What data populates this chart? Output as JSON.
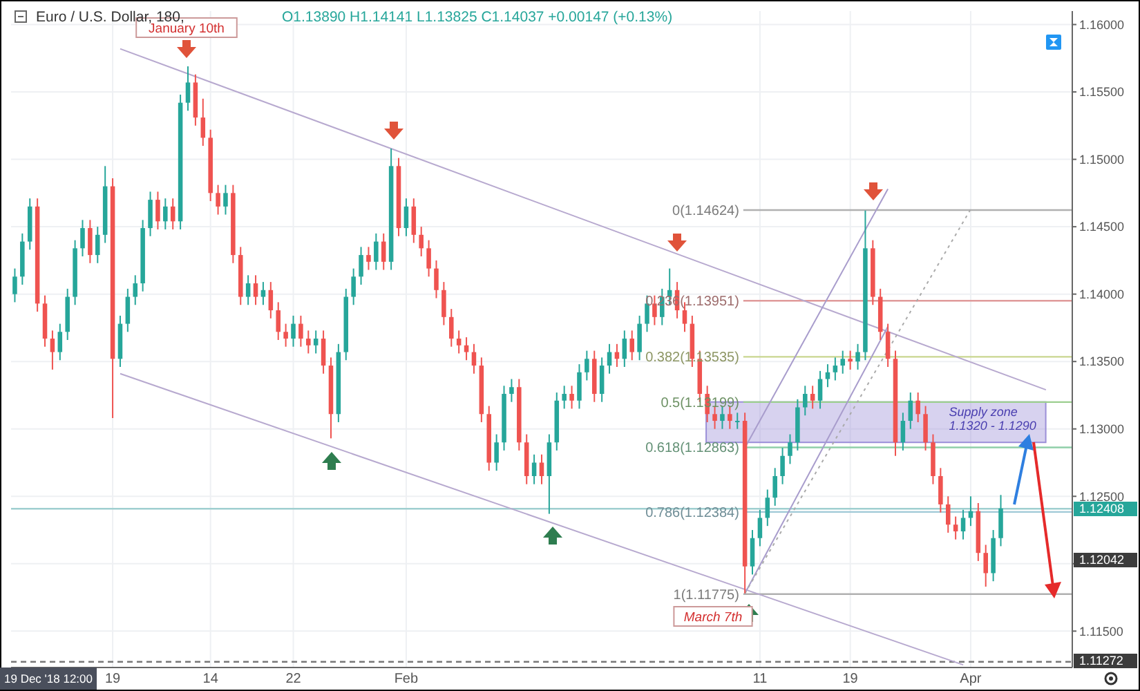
{
  "chart_data": {
    "type": "candlestick",
    "title": "Euro / U.S. Dollar, 180,",
    "subtitle": "O1.13890 H1.14141 L1.13825 C1.14037 +0.00147 (+0.13%)",
    "categories": [
      null,
      null,
      null,
      null,
      null,
      null,
      null,
      null,
      null,
      null,
      null,
      null,
      null,
      "19",
      null,
      null,
      null,
      null,
      null,
      null,
      null,
      null,
      null,
      null,
      null,
      null,
      "14",
      null,
      null,
      null,
      null,
      null,
      null,
      null,
      null,
      null,
      null,
      "22",
      null,
      null,
      null,
      null,
      null,
      null,
      null,
      null,
      null,
      null,
      null,
      null,
      null,
      null,
      "Feb",
      null,
      null,
      null,
      null,
      null,
      null,
      null,
      null,
      null,
      null,
      null,
      null,
      null,
      null,
      null,
      null,
      null,
      null,
      null,
      null,
      null,
      null,
      null,
      null,
      null,
      null,
      null,
      null,
      null,
      null,
      null,
      null,
      null,
      null,
      null,
      null,
      null,
      null,
      null,
      null,
      null,
      null,
      null,
      null,
      null,
      null,
      "11",
      null,
      null,
      null,
      null,
      null,
      null,
      null,
      null,
      null,
      null,
      null,
      "19",
      null,
      null,
      null,
      null,
      null,
      null,
      null,
      null,
      null,
      null,
      null,
      null,
      null,
      null,
      null,
      "Apr",
      null,
      null,
      null,
      null,
      null,
      null,
      null,
      null,
      null,
      null,
      null,
      null,
      null
    ],
    "ohlc": [
      [
        1.14,
        1.1419,
        1.1394,
        1.1413
      ],
      [
        1.1413,
        1.1445,
        1.1407,
        1.1439
      ],
      [
        1.1439,
        1.1471,
        1.1433,
        1.1465
      ],
      [
        1.1465,
        1.1471,
        1.1387,
        1.1393
      ],
      [
        1.1393,
        1.1399,
        1.1361,
        1.1367
      ],
      [
        1.1367,
        1.1373,
        1.1344,
        1.1357
      ],
      [
        1.1357,
        1.1378,
        1.1351,
        1.1372
      ],
      [
        1.1372,
        1.1404,
        1.1366,
        1.1398
      ],
      [
        1.1398,
        1.144,
        1.1392,
        1.1434
      ],
      [
        1.1434,
        1.1455,
        1.1428,
        1.1449
      ],
      [
        1.1449,
        1.1455,
        1.1423,
        1.1429
      ],
      [
        1.1429,
        1.145,
        1.1423,
        1.1444
      ],
      [
        1.1444,
        1.1495,
        1.1438,
        1.148
      ],
      [
        1.148,
        1.1486,
        1.1308,
        1.1352
      ],
      [
        1.1352,
        1.1384,
        1.1346,
        1.1378
      ],
      [
        1.1378,
        1.1404,
        1.1372,
        1.1398
      ],
      [
        1.1398,
        1.1414,
        1.1392,
        1.1408
      ],
      [
        1.1408,
        1.1455,
        1.1402,
        1.1449
      ],
      [
        1.1449,
        1.1476,
        1.1443,
        1.147
      ],
      [
        1.147,
        1.1476,
        1.1448,
        1.1454
      ],
      [
        1.1454,
        1.1471,
        1.1448,
        1.1465
      ],
      [
        1.1465,
        1.1471,
        1.1448,
        1.1454
      ],
      [
        1.1454,
        1.1548,
        1.1448,
        1.1542
      ],
      [
        1.1542,
        1.1569,
        1.1536,
        1.1557
      ],
      [
        1.1557,
        1.1563,
        1.1525,
        1.1531
      ],
      [
        1.1531,
        1.1545,
        1.151,
        1.1516
      ],
      [
        1.1516,
        1.1522,
        1.1469,
        1.1475
      ],
      [
        1.1475,
        1.1481,
        1.1459,
        1.1465
      ],
      [
        1.1465,
        1.1481,
        1.1459,
        1.1475
      ],
      [
        1.1475,
        1.1481,
        1.1423,
        1.1429
      ],
      [
        1.1429,
        1.1435,
        1.1392,
        1.1398
      ],
      [
        1.1398,
        1.1414,
        1.1392,
        1.1408
      ],
      [
        1.1408,
        1.1414,
        1.1392,
        1.1398
      ],
      [
        1.1398,
        1.1409,
        1.1392,
        1.1403
      ],
      [
        1.1403,
        1.1409,
        1.1382,
        1.1388
      ],
      [
        1.1388,
        1.1394,
        1.1366,
        1.1372
      ],
      [
        1.1372,
        1.1378,
        1.1361,
        1.1367
      ],
      [
        1.1367,
        1.1384,
        1.1361,
        1.1378
      ],
      [
        1.1378,
        1.1384,
        1.1361,
        1.1367
      ],
      [
        1.1367,
        1.1373,
        1.1356,
        1.1362
      ],
      [
        1.1362,
        1.1373,
        1.1356,
        1.1367
      ],
      [
        1.1367,
        1.1373,
        1.1341,
        1.1347
      ],
      [
        1.1347,
        1.1353,
        1.1293,
        1.1311
      ],
      [
        1.1311,
        1.1363,
        1.1305,
        1.1357
      ],
      [
        1.1357,
        1.1404,
        1.1351,
        1.1398
      ],
      [
        1.1398,
        1.1419,
        1.1392,
        1.1413
      ],
      [
        1.1413,
        1.1435,
        1.1407,
        1.1429
      ],
      [
        1.1429,
        1.1435,
        1.1418,
        1.1424
      ],
      [
        1.1424,
        1.1445,
        1.1418,
        1.1439
      ],
      [
        1.1439,
        1.1445,
        1.1418,
        1.1424
      ],
      [
        1.1424,
        1.1508,
        1.1418,
        1.1495
      ],
      [
        1.1495,
        1.1501,
        1.1443,
        1.1449
      ],
      [
        1.1449,
        1.1471,
        1.1443,
        1.1465
      ],
      [
        1.1465,
        1.1471,
        1.1438,
        1.1444
      ],
      [
        1.1444,
        1.145,
        1.1428,
        1.1434
      ],
      [
        1.1434,
        1.144,
        1.1413,
        1.1419
      ],
      [
        1.1419,
        1.1425,
        1.1397,
        1.1403
      ],
      [
        1.1403,
        1.1409,
        1.1377,
        1.1383
      ],
      [
        1.1383,
        1.1389,
        1.1361,
        1.1367
      ],
      [
        1.1367,
        1.1373,
        1.1356,
        1.1362
      ],
      [
        1.1362,
        1.1368,
        1.1351,
        1.1357
      ],
      [
        1.1357,
        1.1363,
        1.1341,
        1.1347
      ],
      [
        1.1347,
        1.1353,
        1.1305,
        1.1311
      ],
      [
        1.1311,
        1.1317,
        1.1269,
        1.1275
      ],
      [
        1.1275,
        1.1296,
        1.1269,
        1.129
      ],
      [
        1.129,
        1.1332,
        1.1284,
        1.1326
      ],
      [
        1.1326,
        1.1337,
        1.132,
        1.1331
      ],
      [
        1.1331,
        1.1337,
        1.1284,
        1.129
      ],
      [
        1.129,
        1.1296,
        1.1259,
        1.1265
      ],
      [
        1.1265,
        1.1281,
        1.1259,
        1.1275
      ],
      [
        1.1275,
        1.1281,
        1.1259,
        1.1265
      ],
      [
        1.1265,
        1.1296,
        1.1237,
        1.129
      ],
      [
        1.129,
        1.1327,
        1.1284,
        1.1321
      ],
      [
        1.1321,
        1.1332,
        1.1315,
        1.1326
      ],
      [
        1.1326,
        1.1332,
        1.1315,
        1.1321
      ],
      [
        1.1321,
        1.1348,
        1.1315,
        1.1342
      ],
      [
        1.1342,
        1.1358,
        1.1336,
        1.1352
      ],
      [
        1.1352,
        1.1358,
        1.132,
        1.1326
      ],
      [
        1.1326,
        1.1353,
        1.132,
        1.1347
      ],
      [
        1.1347,
        1.1363,
        1.1341,
        1.1357
      ],
      [
        1.1357,
        1.1363,
        1.1346,
        1.1352
      ],
      [
        1.1352,
        1.1373,
        1.1346,
        1.1367
      ],
      [
        1.1367,
        1.1373,
        1.1351,
        1.1357
      ],
      [
        1.1357,
        1.1384,
        1.1351,
        1.1378
      ],
      [
        1.1378,
        1.1399,
        1.1372,
        1.1393
      ],
      [
        1.1393,
        1.1399,
        1.1377,
        1.1383
      ],
      [
        1.1383,
        1.1404,
        1.1377,
        1.1398
      ],
      [
        1.1398,
        1.1419,
        1.1392,
        1.1403
      ],
      [
        1.1403,
        1.1409,
        1.1382,
        1.1388
      ],
      [
        1.1388,
        1.1394,
        1.1372,
        1.1378
      ],
      [
        1.1378,
        1.1384,
        1.1346,
        1.1352
      ],
      [
        1.1352,
        1.1358,
        1.132,
        1.1326
      ],
      [
        1.1326,
        1.1332,
        1.1305,
        1.1311
      ],
      [
        1.1311,
        1.1317,
        1.13,
        1.1306
      ],
      [
        1.1306,
        1.1317,
        1.13,
        1.1311
      ],
      [
        1.1311,
        1.1317,
        1.13,
        1.1306
      ],
      [
        1.1306,
        1.1312,
        1.13,
        1.1306
      ],
      [
        1.1306,
        1.1312,
        1.1178,
        1.1198
      ],
      [
        1.1198,
        1.1225,
        1.1192,
        1.1219
      ],
      [
        1.1219,
        1.124,
        1.1213,
        1.1234
      ],
      [
        1.1234,
        1.1255,
        1.1228,
        1.1249
      ],
      [
        1.1249,
        1.1271,
        1.1243,
        1.1265
      ],
      [
        1.1265,
        1.1286,
        1.1259,
        1.128
      ],
      [
        1.128,
        1.1296,
        1.1274,
        1.129
      ],
      [
        1.129,
        1.1322,
        1.1284,
        1.1316
      ],
      [
        1.1316,
        1.1332,
        1.131,
        1.1326
      ],
      [
        1.1326,
        1.1332,
        1.1315,
        1.1321
      ],
      [
        1.1321,
        1.1343,
        1.1315,
        1.1337
      ],
      [
        1.1337,
        1.1348,
        1.1331,
        1.1342
      ],
      [
        1.1342,
        1.1353,
        1.1336,
        1.1347
      ],
      [
        1.1347,
        1.1358,
        1.1341,
        1.1352
      ],
      [
        1.1352,
        1.1358,
        1.1344,
        1.135
      ],
      [
        1.135,
        1.1363,
        1.1344,
        1.1357
      ],
      [
        1.1357,
        1.1462,
        1.1351,
        1.1434
      ],
      [
        1.1434,
        1.144,
        1.1392,
        1.1398
      ],
      [
        1.1398,
        1.1404,
        1.1366,
        1.1372
      ],
      [
        1.1372,
        1.1378,
        1.1346,
        1.1352
      ],
      [
        1.1352,
        1.1358,
        1.128,
        1.129
      ],
      [
        1.129,
        1.1312,
        1.1284,
        1.1306
      ],
      [
        1.1306,
        1.1327,
        1.13,
        1.1321
      ],
      [
        1.1321,
        1.1327,
        1.1305,
        1.1311
      ],
      [
        1.1311,
        1.1317,
        1.1284,
        1.129
      ],
      [
        1.129,
        1.1296,
        1.1259,
        1.1265
      ],
      [
        1.1265,
        1.1271,
        1.1238,
        1.1244
      ],
      [
        1.1244,
        1.125,
        1.1223,
        1.1229
      ],
      [
        1.1229,
        1.1235,
        1.1218,
        1.1224
      ],
      [
        1.1224,
        1.124,
        1.1218,
        1.1234
      ],
      [
        1.1234,
        1.125,
        1.1228,
        1.1239
      ],
      [
        1.1239,
        1.1245,
        1.1202,
        1.1208
      ],
      [
        1.1208,
        1.1214,
        1.1183,
        1.1193
      ],
      [
        1.1193,
        1.1225,
        1.1187,
        1.1219
      ],
      [
        1.1219,
        1.1251,
        1.1213,
        1.1241
      ],
      null,
      null,
      null,
      null,
      null,
      null,
      null,
      null,
      null
    ],
    "ylim": [
      1.1123,
      1.161
    ],
    "yticks": [
      {
        "value": 1.115,
        "label": "1.11500"
      },
      {
        "value": 1.12,
        "label": null
      },
      {
        "value": 1.125,
        "label": "1.12500"
      },
      {
        "value": 1.13,
        "label": "1.13000"
      },
      {
        "value": 1.135,
        "label": "1.13500"
      },
      {
        "value": 1.14,
        "label": "1.14000"
      },
      {
        "value": 1.145,
        "label": "1.14500"
      },
      {
        "value": 1.15,
        "label": "1.15000"
      },
      {
        "value": 1.155,
        "label": "1.15500"
      },
      {
        "value": 1.16,
        "label": "1.16000"
      }
    ],
    "grid": true,
    "series": [
      {
        "type": "line",
        "color": "#b7a9cf",
        "values": [
          null,
          null,
          null,
          null,
          null,
          null,
          null,
          null,
          null,
          null,
          null,
          null,
          null,
          null,
          1.1582,
          null,
          null,
          null,
          null,
          null,
          null,
          null,
          null,
          null,
          null,
          null,
          null,
          null,
          null,
          null,
          null,
          null,
          null,
          null,
          null,
          null,
          null,
          null,
          null,
          null,
          null,
          null,
          null,
          null,
          null,
          null,
          null,
          null,
          null,
          null,
          null,
          null,
          null,
          null,
          null,
          null,
          null,
          null,
          null,
          null,
          null,
          null,
          null,
          null,
          null,
          null,
          null,
          null,
          null,
          null,
          null,
          null,
          null,
          null,
          null,
          null,
          null,
          null,
          null,
          null,
          null,
          null,
          null,
          null,
          null,
          null,
          null,
          null,
          null,
          null,
          null,
          null,
          null,
          null,
          null,
          null,
          null,
          null,
          null,
          null,
          null,
          null,
          null,
          null,
          null,
          null,
          null,
          null,
          null,
          null,
          null,
          null,
          null,
          null,
          null,
          null,
          null,
          null,
          null,
          null,
          null,
          null,
          null,
          null,
          null,
          null,
          null,
          null,
          null,
          null,
          null,
          null,
          null,
          null,
          null,
          null,
          null,
          1.1329,
          null,
          null,
          null
        ]
      },
      {
        "type": "line",
        "color": "#b7a9cf",
        "values": [
          null,
          null,
          null,
          null,
          null,
          null,
          null,
          null,
          null,
          null,
          null,
          null,
          null,
          null,
          1.1341,
          null,
          null,
          null,
          null,
          null,
          null,
          null,
          null,
          null,
          null,
          null,
          null,
          null,
          null,
          null,
          null,
          null,
          null,
          null,
          null,
          null,
          null,
          null,
          null,
          null,
          null,
          null,
          null,
          null,
          null,
          null,
          null,
          null,
          null,
          null,
          null,
          null,
          null,
          null,
          null,
          null,
          null,
          null,
          null,
          null,
          null,
          null,
          null,
          null,
          null,
          null,
          null,
          null,
          null,
          null,
          null,
          null,
          null,
          null,
          null,
          null,
          null,
          null,
          null,
          null,
          null,
          null,
          null,
          null,
          null,
          null,
          null,
          null,
          null,
          null,
          null,
          null,
          null,
          null,
          null,
          null,
          null,
          null,
          null,
          null,
          null,
          null,
          null,
          null,
          null,
          null,
          null,
          null,
          null,
          null,
          null,
          null,
          null,
          null,
          null,
          null,
          null,
          null,
          null,
          null,
          null,
          null,
          null,
          null,
          null,
          null,
          1.1125,
          null,
          null,
          null,
          null,
          null,
          null,
          null,
          null,
          null,
          null,
          null,
          null,
          null,
          null
        ]
      },
      {
        "type": "line",
        "color": "#a89ccc",
        "values": [
          null,
          null,
          null,
          null,
          null,
          null,
          null,
          null,
          null,
          null,
          null,
          null,
          null,
          null,
          null,
          null,
          null,
          null,
          null,
          null,
          null,
          null,
          null,
          null,
          null,
          null,
          null,
          null,
          null,
          null,
          null,
          null,
          null,
          null,
          null,
          null,
          null,
          null,
          null,
          null,
          null,
          null,
          null,
          null,
          null,
          null,
          null,
          null,
          null,
          null,
          null,
          null,
          null,
          null,
          null,
          null,
          null,
          null,
          null,
          null,
          null,
          null,
          null,
          null,
          null,
          null,
          null,
          null,
          null,
          null,
          null,
          null,
          null,
          null,
          null,
          null,
          null,
          null,
          null,
          null,
          null,
          null,
          null,
          null,
          null,
          null,
          null,
          null,
          null,
          null,
          null,
          null,
          null,
          null,
          null,
          null,
          null,
          1.1286,
          null,
          null,
          null,
          null,
          null,
          null,
          null,
          null,
          null,
          null,
          null,
          null,
          null,
          null,
          null,
          null,
          null,
          null,
          1.1478,
          null,
          null,
          null,
          null,
          null,
          null,
          null,
          null,
          null,
          null,
          null,
          null,
          null,
          null,
          null,
          null,
          null,
          null,
          null,
          null,
          null,
          null,
          null,
          null
        ]
      },
      {
        "type": "line",
        "color": "#a89ccc",
        "values": [
          null,
          null,
          null,
          null,
          null,
          null,
          null,
          null,
          null,
          null,
          null,
          null,
          null,
          null,
          null,
          null,
          null,
          null,
          null,
          null,
          null,
          null,
          null,
          null,
          null,
          null,
          null,
          null,
          null,
          null,
          null,
          null,
          null,
          null,
          null,
          null,
          null,
          null,
          null,
          null,
          null,
          null,
          null,
          null,
          null,
          null,
          null,
          null,
          null,
          null,
          null,
          null,
          null,
          null,
          null,
          null,
          null,
          null,
          null,
          null,
          null,
          null,
          null,
          null,
          null,
          null,
          null,
          null,
          null,
          null,
          null,
          null,
          null,
          null,
          null,
          null,
          null,
          null,
          null,
          null,
          null,
          null,
          null,
          null,
          null,
          null,
          null,
          null,
          null,
          null,
          null,
          null,
          null,
          null,
          null,
          null,
          null,
          1.1178,
          null,
          null,
          null,
          null,
          null,
          null,
          null,
          null,
          null,
          null,
          null,
          null,
          null,
          null,
          null,
          null,
          null,
          null,
          1.1376,
          null,
          null,
          null,
          null,
          null,
          null,
          null,
          null,
          null,
          null,
          null,
          null,
          null,
          null,
          null,
          null,
          null,
          null,
          null,
          null,
          null,
          null,
          null,
          null
        ]
      },
      {
        "type": "line",
        "color": "#aaaaaa",
        "line_style": "dotted",
        "values": [
          null,
          null,
          null,
          null,
          null,
          null,
          null,
          null,
          null,
          null,
          null,
          null,
          null,
          null,
          null,
          null,
          null,
          null,
          null,
          null,
          null,
          null,
          null,
          null,
          null,
          null,
          null,
          null,
          null,
          null,
          null,
          null,
          null,
          null,
          null,
          null,
          null,
          null,
          null,
          null,
          null,
          null,
          null,
          null,
          null,
          null,
          null,
          null,
          null,
          null,
          null,
          null,
          null,
          null,
          null,
          null,
          null,
          null,
          null,
          null,
          null,
          null,
          null,
          null,
          null,
          null,
          null,
          null,
          null,
          null,
          null,
          null,
          null,
          null,
          null,
          null,
          null,
          null,
          null,
          null,
          null,
          null,
          null,
          null,
          null,
          null,
          null,
          null,
          null,
          null,
          null,
          null,
          null,
          null,
          null,
          null,
          null,
          1.1178,
          null,
          null,
          null,
          null,
          null,
          null,
          null,
          null,
          null,
          null,
          null,
          null,
          null,
          null,
          null,
          null,
          null,
          null,
          null,
          null,
          null,
          null,
          null,
          null,
          null,
          null,
          null,
          null,
          null,
          1.1463,
          null,
          null,
          null,
          null,
          null,
          null,
          null,
          null,
          null,
          null,
          null,
          null,
          null
        ]
      }
    ],
    "ref_lines": [
      {
        "axis": "y",
        "value": 1.14624,
        "label": "0(1.14624)",
        "color": "#b0b0b0"
      },
      {
        "axis": "y",
        "value": 1.13951,
        "label": "0.236(1.13951)",
        "color": "#e09a9a"
      },
      {
        "axis": "y",
        "value": 1.13535,
        "label": "0.382(1.13535)",
        "color": "#c9d68f"
      },
      {
        "axis": "y",
        "value": 1.13199,
        "label": "0.5(1.13199)",
        "color": "#9ccf8f"
      },
      {
        "axis": "y",
        "value": 1.12863,
        "label": "0.618(1.12863)",
        "color": "#8fcfa8"
      },
      {
        "axis": "y",
        "value": 1.12384,
        "label": "0.786(1.12384)",
        "color": "#9fc9d6"
      },
      {
        "axis": "y",
        "value": 1.11775,
        "label": "1(1.11775)",
        "color": "#b0b0b0"
      },
      {
        "axis": "y",
        "value": 1.12408,
        "color": "#9fcfd0"
      },
      {
        "axis": "y",
        "value": 1.11272,
        "color": "#777777",
        "line_style": "dashed"
      }
    ],
    "bands": [
      {
        "axis": "y",
        "from": 1.129,
        "to": 1.132,
        "label": "Supply zone\n1.1320 - 1.1290",
        "color": "#9b8fd8"
      }
    ],
    "annotations": [
      {
        "text": "January 10th",
        "y": 1.1569
      },
      "March 7th",
      "19 Dec '18 12:00",
      "1.12408",
      "1.12042",
      "1.11272"
    ]
  }
}
